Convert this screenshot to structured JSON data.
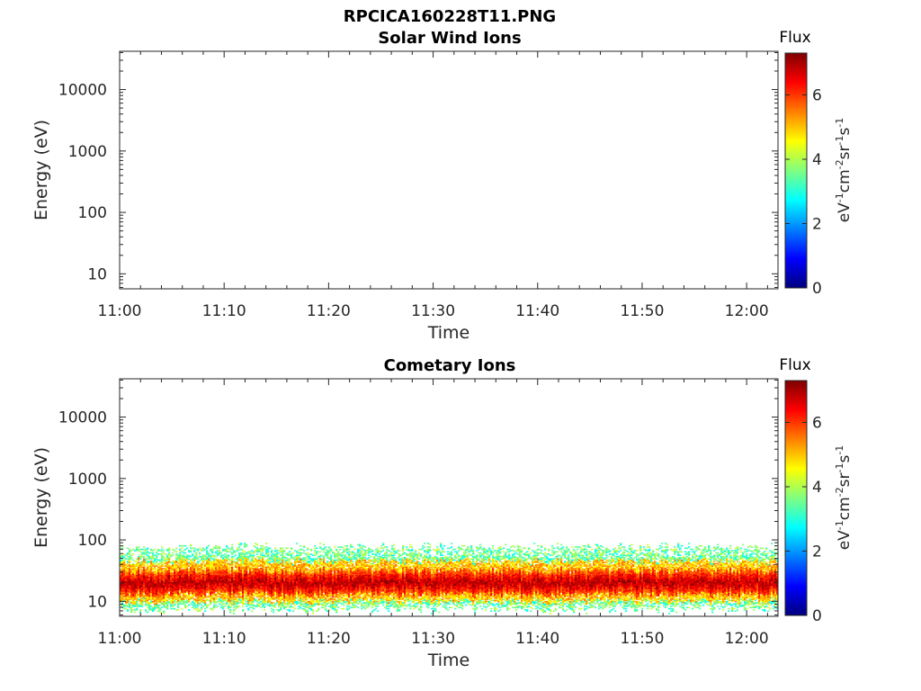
{
  "figure": {
    "title": "RPCICA160228T11.PNG"
  },
  "chart_data": [
    {
      "type": "heatmap",
      "title": "Solar Wind Ions",
      "xlabel": "Time",
      "ylabel": "Energy (eV)",
      "x_range": [
        "11:00",
        "12:03"
      ],
      "x_ticks": [
        "11:00",
        "11:10",
        "11:20",
        "11:30",
        "11:40",
        "11:50",
        "12:00"
      ],
      "y_scale": "log",
      "y_range": [
        5.7,
        42000
      ],
      "y_ticks": [
        10,
        100,
        1000,
        10000
      ],
      "y_tick_labels": [
        "10",
        "100",
        "1000",
        "10000"
      ],
      "colorbar": {
        "title": "Flux",
        "label": "eV-1cm-2sr-1s-1",
        "range": [
          0,
          7.3
        ],
        "ticks": [
          0,
          2,
          4,
          6
        ],
        "tick_labels": [
          "0",
          "2",
          "4",
          "6"
        ],
        "colormap": "jet"
      },
      "data": "no flux visible (empty panel)"
    },
    {
      "type": "heatmap",
      "title": "Cometary Ions",
      "xlabel": "Time",
      "ylabel": "Energy (eV)",
      "x_range": [
        "11:00",
        "12:03"
      ],
      "x_ticks": [
        "11:00",
        "11:10",
        "11:20",
        "11:30",
        "11:40",
        "11:50",
        "12:00"
      ],
      "y_scale": "log",
      "y_range": [
        5.7,
        42000
      ],
      "y_ticks": [
        10,
        100,
        1000,
        10000
      ],
      "y_tick_labels": [
        "10",
        "100",
        "1000",
        "10000"
      ],
      "colorbar": {
        "title": "Flux",
        "label": "eV-1cm-2sr-1s-1",
        "range": [
          0,
          7.3
        ],
        "ticks": [
          0,
          2,
          4,
          6
        ],
        "tick_labels": [
          "0",
          "2",
          "4",
          "6"
        ],
        "colormap": "jet"
      },
      "band": {
        "peak_energy_ev": 20,
        "peak_flux": 7,
        "core_energy_range_ev": [
          13,
          32
        ],
        "mid_energy_range_ev": [
          10,
          45
        ],
        "fringe_energy_range_ev": [
          7,
          80
        ],
        "fringe_flux": 3.5
      }
    }
  ]
}
